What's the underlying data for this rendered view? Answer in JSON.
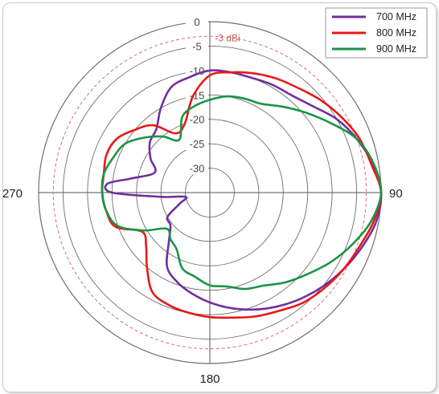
{
  "chart_data": {
    "type": "polar-line",
    "title": "",
    "radial_unit": "dB",
    "radial_range": [
      -35,
      0
    ],
    "rings": [
      0,
      -5,
      -10,
      -15,
      -20,
      -25,
      -30
    ],
    "ring_labels": [
      "0",
      "-5",
      "-10",
      "-15",
      "-20",
      "-25",
      "-30"
    ],
    "angle_labels": [
      {
        "angle": 90,
        "label": "90"
      },
      {
        "angle": 180,
        "label": "180"
      },
      {
        "angle": 270,
        "label": "270"
      }
    ],
    "reference_line": {
      "value": -3,
      "label": "-3 dBi",
      "color": "#d07070",
      "style": "dashed"
    },
    "legend_position": "top-right",
    "series": [
      {
        "name": "700 MHz",
        "color": "#7030a0",
        "angles": [
          0,
          10,
          20,
          30,
          40,
          50,
          60,
          70,
          80,
          90,
          100,
          110,
          120,
          130,
          140,
          150,
          160,
          170,
          180,
          190,
          200,
          210,
          220,
          230,
          240,
          250,
          260,
          265,
          270,
          275,
          280,
          290,
          300,
          310,
          320,
          330,
          340,
          350
        ],
        "values": [
          -10,
          -10,
          -10,
          -9.5,
          -9,
          -7.5,
          -5,
          -3,
          -1.2,
          0,
          -0.5,
          -2,
          -3.5,
          -5,
          -6.5,
          -8,
          -9.5,
          -11,
          -12.5,
          -14,
          -15.5,
          -17.5,
          -22,
          -24.5,
          -25,
          -28.5,
          -30,
          -25,
          -15,
          -14,
          -18.5,
          -23,
          -21,
          -19,
          -18,
          -15,
          -12,
          -11
        ]
      },
      {
        "name": "800 MHz",
        "color": "#e81818",
        "angles": [
          0,
          10,
          20,
          30,
          40,
          50,
          60,
          70,
          80,
          90,
          100,
          110,
          120,
          130,
          140,
          150,
          160,
          170,
          180,
          190,
          200,
          210,
          220,
          230,
          240,
          250,
          260,
          270,
          280,
          290,
          300,
          310,
          320,
          330,
          340,
          350
        ],
        "values": [
          -11,
          -10,
          -9,
          -8,
          -7,
          -5.5,
          -4,
          -2.5,
          -1.5,
          0,
          -1,
          -2.5,
          -3.5,
          -4.5,
          -5.5,
          -7,
          -8,
          -9,
          -9.5,
          -10,
          -10.5,
          -11.5,
          -15,
          -18,
          -19,
          -14.5,
          -13.5,
          -13,
          -13,
          -12.5,
          -13,
          -15,
          -17,
          -21,
          -20,
          -15
        ]
      },
      {
        "name": "900 MHz",
        "color": "#1a9446",
        "angles": [
          0,
          10,
          20,
          30,
          40,
          50,
          60,
          70,
          80,
          90,
          100,
          110,
          120,
          130,
          140,
          150,
          160,
          170,
          180,
          190,
          200,
          210,
          220,
          230,
          240,
          250,
          260,
          270,
          280,
          290,
          300,
          310,
          320,
          330,
          340,
          350
        ],
        "values": [
          -16,
          -15,
          -14.5,
          -14,
          -12,
          -9.5,
          -6.5,
          -3,
          -1,
          0,
          -1.5,
          -4,
          -6.5,
          -9,
          -11,
          -13,
          -14,
          -15.5,
          -16,
          -17.5,
          -18.5,
          -21.5,
          -22.5,
          -23.5,
          -19.5,
          -15,
          -13.5,
          -13,
          -13,
          -14,
          -15,
          -17.5,
          -20,
          -22.5,
          -18.5,
          -17
        ]
      }
    ]
  }
}
